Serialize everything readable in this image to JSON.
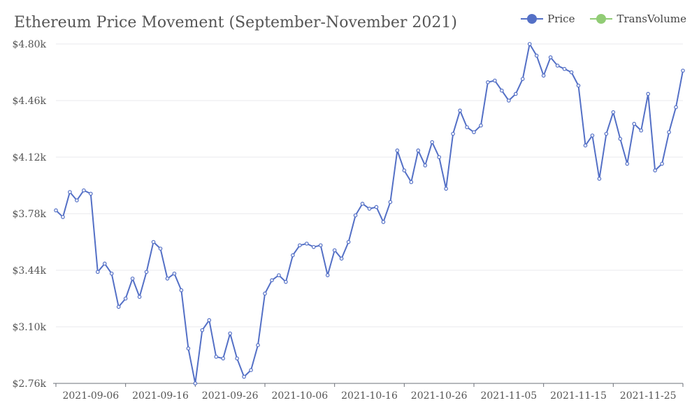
{
  "chart_data": {
    "type": "line",
    "title": "Ethereum Price Movement (September-November 2021)",
    "y_ticks": [
      "$2.76k",
      "$3.10k",
      "$3.44k",
      "$3.78k",
      "$4.12k",
      "$4.46k",
      "$4.80k"
    ],
    "x_ticks": [
      "2021-09-06",
      "2021-09-16",
      "2021-09-26",
      "2021-10-06",
      "2021-10-16",
      "2021-10-26",
      "2021-11-05",
      "2021-11-15",
      "2021-11-25"
    ],
    "ylim": [
      2.76,
      4.8
    ],
    "xlim": [
      "2021-09-01",
      "2021-11-30"
    ],
    "grid": true,
    "legend_position": "top-right",
    "series": [
      {
        "name": "Price",
        "color": "#5470c6",
        "points": [
          [
            "2021-09-01",
            3.8
          ],
          [
            "2021-09-02",
            3.76
          ],
          [
            "2021-09-03",
            3.91
          ],
          [
            "2021-09-04",
            3.86
          ],
          [
            "2021-09-05",
            3.92
          ],
          [
            "2021-09-06",
            3.9
          ],
          [
            "2021-09-07",
            3.43
          ],
          [
            "2021-09-08",
            3.48
          ],
          [
            "2021-09-09",
            3.42
          ],
          [
            "2021-09-10",
            3.22
          ],
          [
            "2021-09-11",
            3.27
          ],
          [
            "2021-09-12",
            3.39
          ],
          [
            "2021-09-13",
            3.28
          ],
          [
            "2021-09-14",
            3.43
          ],
          [
            "2021-09-15",
            3.61
          ],
          [
            "2021-09-16",
            3.57
          ],
          [
            "2021-09-17",
            3.39
          ],
          [
            "2021-09-18",
            3.42
          ],
          [
            "2021-09-19",
            3.32
          ],
          [
            "2021-09-20",
            2.97
          ],
          [
            "2021-09-21",
            2.76
          ],
          [
            "2021-09-22",
            3.08
          ],
          [
            "2021-09-23",
            3.14
          ],
          [
            "2021-09-24",
            2.92
          ],
          [
            "2021-09-25",
            2.91
          ],
          [
            "2021-09-26",
            3.06
          ],
          [
            "2021-09-27",
            2.91
          ],
          [
            "2021-09-28",
            2.8
          ],
          [
            "2021-09-29",
            2.84
          ],
          [
            "2021-09-30",
            2.99
          ],
          [
            "2021-10-01",
            3.3
          ],
          [
            "2021-10-02",
            3.38
          ],
          [
            "2021-10-03",
            3.41
          ],
          [
            "2021-10-04",
            3.37
          ],
          [
            "2021-10-05",
            3.53
          ],
          [
            "2021-10-06",
            3.59
          ],
          [
            "2021-10-07",
            3.6
          ],
          [
            "2021-10-08",
            3.58
          ],
          [
            "2021-10-09",
            3.59
          ],
          [
            "2021-10-10",
            3.41
          ],
          [
            "2021-10-11",
            3.56
          ],
          [
            "2021-10-12",
            3.51
          ],
          [
            "2021-10-13",
            3.61
          ],
          [
            "2021-10-14",
            3.77
          ],
          [
            "2021-10-15",
            3.84
          ],
          [
            "2021-10-16",
            3.81
          ],
          [
            "2021-10-17",
            3.82
          ],
          [
            "2021-10-18",
            3.73
          ],
          [
            "2021-10-19",
            3.85
          ],
          [
            "2021-10-20",
            4.16
          ],
          [
            "2021-10-21",
            4.04
          ],
          [
            "2021-10-22",
            3.97
          ],
          [
            "2021-10-23",
            4.16
          ],
          [
            "2021-10-24",
            4.07
          ],
          [
            "2021-10-25",
            4.21
          ],
          [
            "2021-10-26",
            4.12
          ],
          [
            "2021-10-27",
            3.93
          ],
          [
            "2021-10-28",
            4.26
          ],
          [
            "2021-10-29",
            4.4
          ],
          [
            "2021-10-30",
            4.3
          ],
          [
            "2021-10-31",
            4.27
          ],
          [
            "2021-11-01",
            4.31
          ],
          [
            "2021-11-02",
            4.57
          ],
          [
            "2021-11-03",
            4.58
          ],
          [
            "2021-11-04",
            4.52
          ],
          [
            "2021-11-05",
            4.46
          ],
          [
            "2021-11-06",
            4.5
          ],
          [
            "2021-11-07",
            4.59
          ],
          [
            "2021-11-08",
            4.8
          ],
          [
            "2021-11-09",
            4.73
          ],
          [
            "2021-11-10",
            4.61
          ],
          [
            "2021-11-11",
            4.72
          ],
          [
            "2021-11-12",
            4.67
          ],
          [
            "2021-11-13",
            4.65
          ],
          [
            "2021-11-14",
            4.63
          ],
          [
            "2021-11-15",
            4.55
          ],
          [
            "2021-11-16",
            4.19
          ],
          [
            "2021-11-17",
            4.25
          ],
          [
            "2021-11-18",
            3.99
          ],
          [
            "2021-11-19",
            4.26
          ],
          [
            "2021-11-20",
            4.39
          ],
          [
            "2021-11-21",
            4.23
          ],
          [
            "2021-11-22",
            4.08
          ],
          [
            "2021-11-23",
            4.32
          ],
          [
            "2021-11-24",
            4.28
          ],
          [
            "2021-11-25",
            4.5
          ],
          [
            "2021-11-26",
            4.04
          ],
          [
            "2021-11-27",
            4.08
          ],
          [
            "2021-11-28",
            4.27
          ],
          [
            "2021-11-29",
            4.42
          ],
          [
            "2021-11-30",
            4.64
          ]
        ]
      },
      {
        "name": "TransVolume",
        "color": "#91cc75",
        "points": []
      }
    ]
  }
}
